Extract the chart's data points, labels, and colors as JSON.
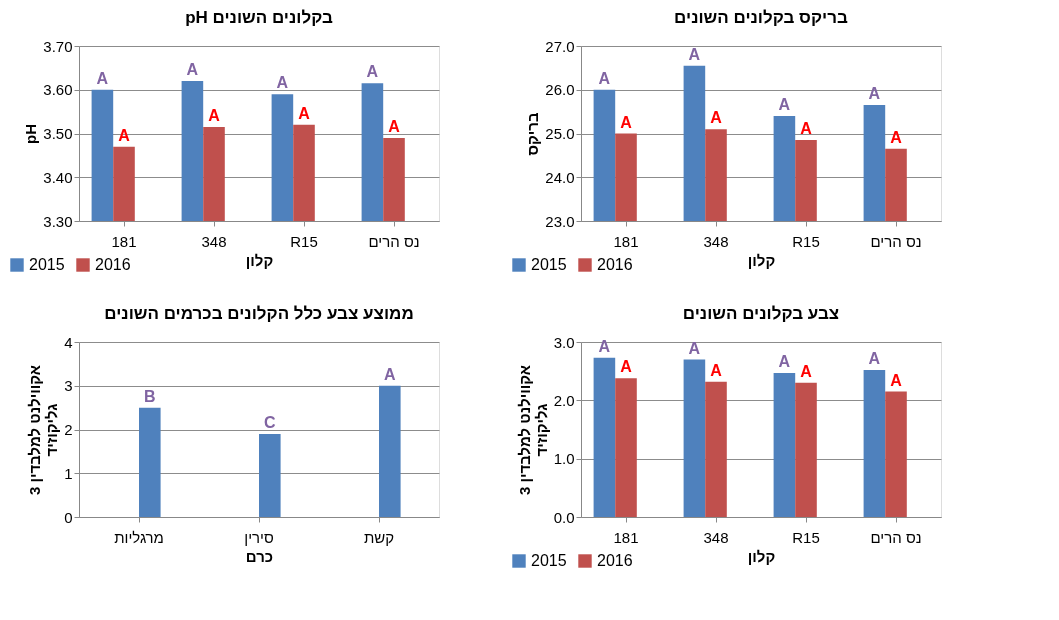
{
  "chart_data": [
    {
      "type": "bar",
      "title": "pH בקלונים השונים",
      "xlabel": "קלון",
      "ylabel": "pH",
      "categories": [
        "181",
        "348",
        "R15",
        "נס הרים"
      ],
      "series": [
        {
          "name": "2015",
          "color": "#4f81bd",
          "values": [
            3.6,
            3.62,
            3.59,
            3.615
          ],
          "value_labels": [
            "A",
            "A",
            "A",
            "A"
          ]
        },
        {
          "name": "2016",
          "color": "#c0504d",
          "values": [
            3.47,
            3.515,
            3.52,
            3.49
          ],
          "value_labels": [
            "A",
            "A",
            "A",
            "A"
          ]
        }
      ],
      "ylim": [
        3.3,
        3.7
      ],
      "yticks": [
        {
          "value": 3.3,
          "label": "3.30"
        },
        {
          "value": 3.4,
          "label": "3.40"
        },
        {
          "value": 3.5,
          "label": "3.50"
        },
        {
          "value": 3.6,
          "label": "3.60"
        },
        {
          "value": 3.7,
          "label": "3.70"
        }
      ],
      "grid": "y",
      "legend": "bottom left"
    },
    {
      "type": "bar",
      "title": "בריקס בקלונים השונים",
      "xlabel": "קלון",
      "ylabel": "בריקס",
      "categories": [
        "181",
        "348",
        "R15",
        "נס הרים"
      ],
      "series": [
        {
          "name": "2015",
          "color": "#4f81bd",
          "values": [
            26.0,
            26.55,
            25.4,
            25.65
          ],
          "value_labels": [
            "A",
            "A",
            "A",
            "A"
          ]
        },
        {
          "name": "2016",
          "color": "#c0504d",
          "values": [
            25.0,
            25.1,
            24.85,
            24.65
          ],
          "value_labels": [
            "A",
            "A",
            "A",
            "A"
          ]
        }
      ],
      "ylim": [
        23,
        27
      ],
      "yticks": [
        {
          "value": 23,
          "label": "23.0"
        },
        {
          "value": 24,
          "label": "24.0"
        },
        {
          "value": 25,
          "label": "25.0"
        },
        {
          "value": 26,
          "label": "26.0"
        },
        {
          "value": 27,
          "label": "27.0"
        }
      ],
      "grid": "y",
      "legend": "bottom left"
    },
    {
      "type": "bar",
      "title": "ממוצע צבע כלל הקלונים בכרמים השונים",
      "xlabel": "כרם",
      "ylabel": "אקווילנט למלבדין 3\nגליקוזיד",
      "categories": [
        "מרגליות",
        "סירין",
        "קשת"
      ],
      "series": [
        {
          "color": "#4f81bd",
          "values": [
            2.5,
            1.9,
            3.0
          ],
          "value_labels": [
            "B",
            "C",
            "A"
          ]
        }
      ],
      "ylim": [
        0,
        4
      ],
      "yticks": [
        0,
        1,
        2,
        3,
        4
      ],
      "grid": "y"
    },
    {
      "type": "bar",
      "title": "צבע בקלונים השונים",
      "xlabel": "קלון",
      "ylabel": "אקווילנט למלבדין 3\nגליקוזיד",
      "categories": [
        "181",
        "348",
        "R15",
        "נס הרים"
      ],
      "series": [
        {
          "name": "2015",
          "color": "#4f81bd",
          "values": [
            2.73,
            2.7,
            2.47,
            2.52
          ],
          "value_labels": [
            "A",
            "A",
            "A",
            "A"
          ]
        },
        {
          "name": "2016",
          "color": "#c0504d",
          "values": [
            2.38,
            2.32,
            2.3,
            2.15
          ],
          "value_labels": [
            "A",
            "A",
            "A",
            "A"
          ]
        }
      ],
      "ylim": [
        0,
        3
      ],
      "yticks": [
        {
          "value": 0,
          "label": "0.0"
        },
        {
          "value": 1,
          "label": "1.0"
        },
        {
          "value": 2,
          "label": "2.0"
        },
        {
          "value": 3,
          "label": "3.0"
        }
      ],
      "grid": "y",
      "legend": "bottom left"
    }
  ]
}
